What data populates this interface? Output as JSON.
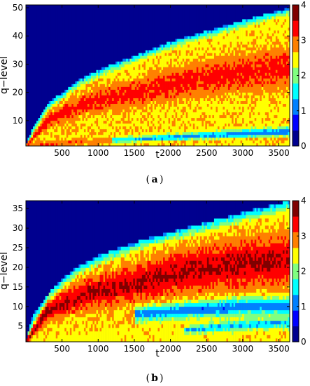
{
  "chart_data": [
    {
      "type": "heatmap",
      "caption_label": "a",
      "xlabel": "t",
      "ylabel": "q−level",
      "xlim": [
        0,
        3650
      ],
      "ylim": [
        1,
        51
      ],
      "xticks": [
        500,
        1000,
        1500,
        2000,
        2500,
        3000,
        3500
      ],
      "yticks": [
        10,
        20,
        30,
        40,
        50
      ],
      "colorbar": {
        "min": 0,
        "max": 4,
        "ticks": [
          0,
          1,
          2,
          3,
          4
        ]
      },
      "colormap": [
        "#00008f",
        "#0000ff",
        "#0080ff",
        "#00ffff",
        "#80ff80",
        "#ffff00",
        "#ff8000",
        "#ff0000",
        "#800000"
      ],
      "background_value": 0,
      "boundary": {
        "t": [
          0,
          100,
          300,
          500,
          700,
          1000,
          1300,
          1600,
          2000,
          2400,
          2800,
          3200,
          3650
        ],
        "q": [
          1,
          8,
          16,
          20,
          24,
          28,
          31,
          34,
          38,
          41,
          44,
          47,
          50
        ]
      },
      "ridges": [
        {
          "t": [
            0,
            300,
            800,
            1500,
            2200,
            3000,
            3650
          ],
          "q": [
            1,
            10,
            16,
            20,
            24,
            27,
            29
          ],
          "peak": 3.3,
          "width": 0.5
        },
        {
          "t": [
            0,
            300,
            800,
            1500,
            2200,
            3000,
            3650
          ],
          "q": [
            1,
            5,
            6,
            7,
            8,
            9,
            9
          ],
          "peak": 2.6,
          "width": 1.5
        },
        {
          "t": [
            0,
            500,
            1200,
            2000,
            3000,
            3650
          ],
          "q": [
            1,
            2,
            3,
            3,
            4,
            4
          ],
          "peak": 3.0,
          "width": 0.4
        }
      ],
      "troughs": [
        {
          "t": [
            1200,
            2000,
            2800,
            3650
          ],
          "q": [
            3,
            4,
            5,
            6
          ],
          "depth": 1.6,
          "width": 0.2
        }
      ]
    },
    {
      "type": "heatmap",
      "caption_label": "b",
      "xlabel": "t",
      "ylabel": "q−level",
      "xlim": [
        0,
        3650
      ],
      "ylim": [
        1,
        37
      ],
      "xticks": [
        500,
        1000,
        1500,
        2000,
        2500,
        3000,
        3500
      ],
      "yticks": [
        5,
        10,
        15,
        20,
        25,
        30,
        35
      ],
      "colorbar": {
        "min": 0,
        "max": 4,
        "ticks": [
          0,
          1,
          2,
          3,
          4
        ]
      },
      "colormap": [
        "#00008f",
        "#0000ff",
        "#0080ff",
        "#00ffff",
        "#80ff80",
        "#ffff00",
        "#ff8000",
        "#ff0000",
        "#800000"
      ],
      "background_value": 0,
      "boundary": {
        "t": [
          0,
          100,
          300,
          500,
          700,
          1000,
          1300,
          1600,
          2000,
          2400,
          2800,
          3200,
          3650
        ],
        "q": [
          1,
          8,
          13,
          17,
          20,
          23,
          25,
          27,
          29,
          31,
          33,
          35,
          37
        ]
      },
      "ridges": [
        {
          "t": [
            0,
            300,
            800,
            1500,
            2200,
            3000,
            3650
          ],
          "q": [
            1,
            9,
            13,
            16,
            19,
            21,
            22
          ],
          "peak": 3.6,
          "width": 0.6
        },
        {
          "t": [
            0,
            400,
            1000,
            1800,
            2600,
            3650
          ],
          "q": [
            1,
            4,
            5,
            7,
            8,
            9
          ],
          "peak": 2.6,
          "width": 0.6
        }
      ],
      "troughs": [
        {
          "t": [
            1500,
            2200,
            3000,
            3650
          ],
          "q": [
            8,
            9,
            10,
            10
          ],
          "depth": 1.5,
          "width": 0.15
        },
        {
          "t": [
            2200,
            2800,
            3650
          ],
          "q": [
            4,
            5,
            6
          ],
          "depth": 1.2,
          "width": 0.15
        }
      ]
    }
  ]
}
